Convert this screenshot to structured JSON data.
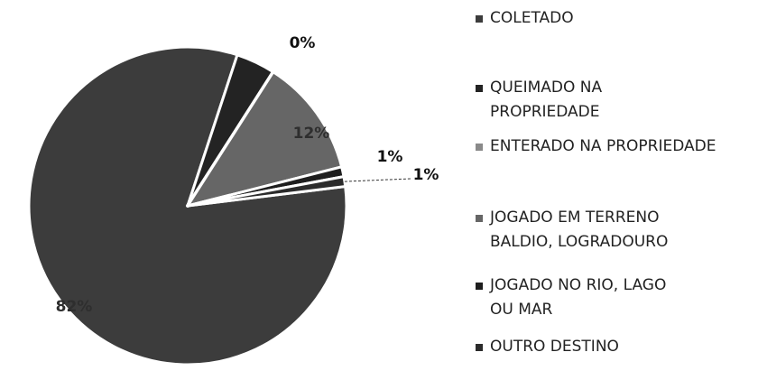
{
  "chart_data": {
    "type": "pie",
    "categories": [
      "COLETADO",
      "QUEIMADO NA PROPRIEDADE",
      "ENTERADO NA PROPRIEDADE",
      "JOGADO EM TERRENO BALDIO, LOGRADOURO",
      "JOGADO NO RIO, LAGO OU MAR",
      "OUTRO DESTINO"
    ],
    "values": [
      82,
      4,
      0,
      12,
      1,
      1
    ],
    "value_labels": [
      "82%",
      null,
      "0%",
      "12%",
      "1%",
      "1%"
    ],
    "colors": [
      "#3c3c3c",
      "#232323",
      "#8a8a8a",
      "#666666",
      "#1e1e1e",
      "#2b2b2b"
    ],
    "legend": "right"
  }
}
